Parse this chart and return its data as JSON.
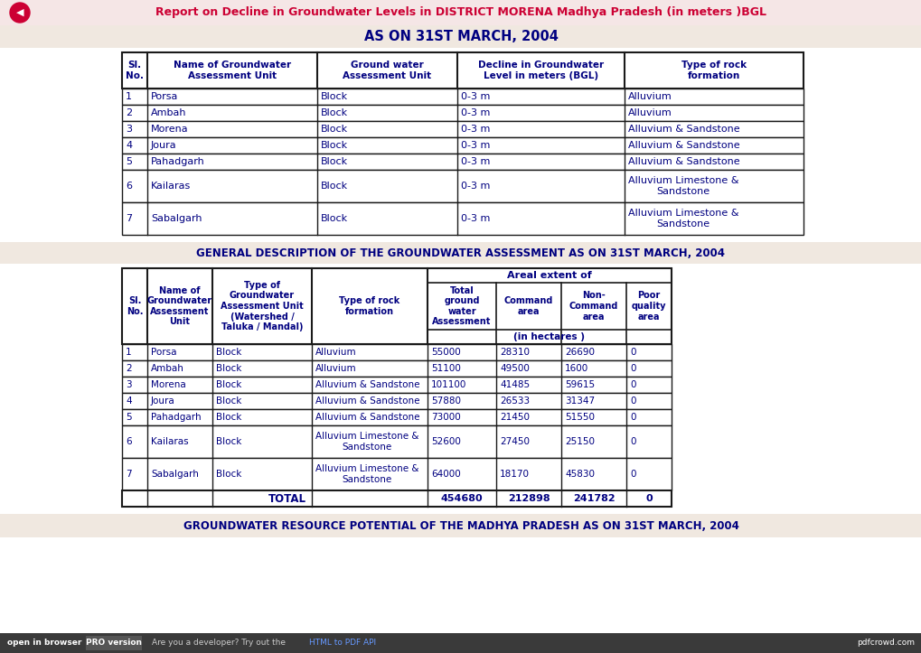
{
  "title_bar_text": "Report on Decline in Groundwater Levels in DISTRICT MORENA Madhya Pradesh (in meters )BGL",
  "title_bar_bg": "#f5e6e6",
  "title_bar_color": "#cc0033",
  "section1_title": "AS ON 31ST MARCH, 2004",
  "section1_title_color": "#000080",
  "section1_bg": "#f0e8e0",
  "table1_headers": [
    "Sl.\nNo.",
    "Name of Groundwater\nAssessment Unit",
    "Ground water\nAssessment Unit",
    "Decline in Groundwater\nLevel in meters (BGL)",
    "Type of rock\nformation"
  ],
  "table1_data": [
    [
      "1",
      "Porsa",
      "Block",
      "0-3 m",
      "Alluvium"
    ],
    [
      "2",
      "Ambah",
      "Block",
      "0-3 m",
      "Alluvium"
    ],
    [
      "3",
      "Morena",
      "Block",
      "0-3 m",
      "Alluvium & Sandstone"
    ],
    [
      "4",
      "Joura",
      "Block",
      "0-3 m",
      "Alluvium & Sandstone"
    ],
    [
      "5",
      "Pahadgarh",
      "Block",
      "0-3 m",
      "Alluvium & Sandstone"
    ],
    [
      "6",
      "Kailaras",
      "Block",
      "0-3 m",
      "Alluvium Limestone &\nSandstone"
    ],
    [
      "7",
      "Sabalgarh",
      "Block",
      "0-3 m",
      "Alluvium Limestone &\nSandstone"
    ]
  ],
  "section2_title": "GENERAL DESCRIPTION OF THE GROUNDWATER ASSESSMENT AS ON 31ST MARCH, 2004",
  "section2_title_color": "#000080",
  "section2_bg": "#f0e8e0",
  "table2_areal_header": "Areal extent of",
  "table2_hectares": "(in hectares )",
  "table2_data": [
    [
      "1",
      "Porsa",
      "Block",
      "Alluvium",
      "55000",
      "28310",
      "26690",
      "0"
    ],
    [
      "2",
      "Ambah",
      "Block",
      "Alluvium",
      "51100",
      "49500",
      "1600",
      "0"
    ],
    [
      "3",
      "Morena",
      "Block",
      "Alluvium & Sandstone",
      "101100",
      "41485",
      "59615",
      "0"
    ],
    [
      "4",
      "Joura",
      "Block",
      "Alluvium & Sandstone",
      "57880",
      "26533",
      "31347",
      "0"
    ],
    [
      "5",
      "Pahadgarh",
      "Block",
      "Alluvium & Sandstone",
      "73000",
      "21450",
      "51550",
      "0"
    ],
    [
      "6",
      "Kailaras",
      "Block",
      "Alluvium Limestone &\nSandstone",
      "52600",
      "27450",
      "25150",
      "0"
    ],
    [
      "7",
      "Sabalgarh",
      "Block",
      "Alluvium Limestone &\nSandstone",
      "64000",
      "18170",
      "45830",
      "0"
    ]
  ],
  "table2_total_label": "TOTAL",
  "table2_total_values": [
    "454680",
    "212898",
    "241782",
    "0"
  ],
  "footer_text": "GROUNDWATER RESOURCE POTENTIAL OF THE MADHYA PRADESH AS ON 31ST MARCH, 2004",
  "footer_color": "#000080",
  "footer_bg": "#f0e8e0",
  "header_color": "#000080",
  "cell_text_color": "#000080",
  "bg_color": "#ffffff",
  "border_color": "#1a1a1a",
  "back_arrow_color": "#cc0033"
}
